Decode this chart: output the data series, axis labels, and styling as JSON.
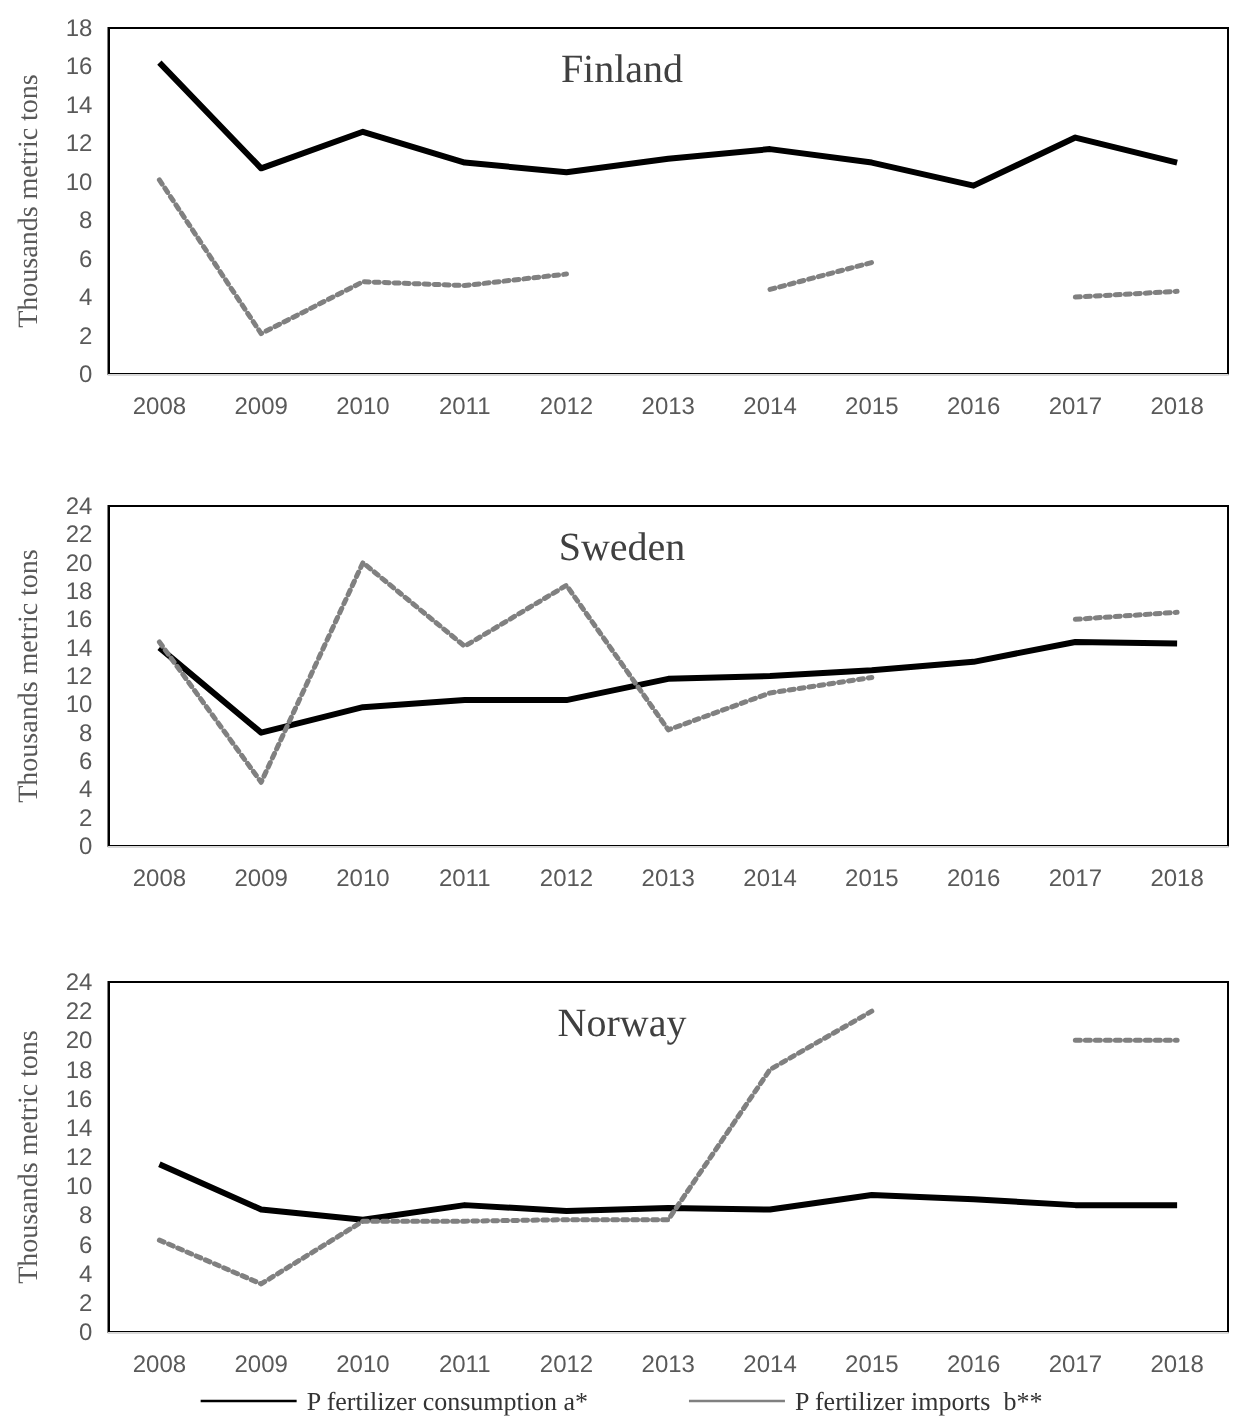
{
  "chart_data": [
    {
      "type": "line",
      "title": "Finland",
      "ylabel": "Thousands metric tons",
      "categories": [
        "2008",
        "2009",
        "2010",
        "2011",
        "2012",
        "2013",
        "2014",
        "2015",
        "2016",
        "2017",
        "2018"
      ],
      "ylim": [
        0,
        18
      ],
      "yticks": [
        0,
        2,
        4,
        6,
        8,
        10,
        12,
        14,
        16,
        18
      ],
      "grid": false,
      "legend": false,
      "marker": "none",
      "series": [
        {
          "color": "#000000",
          "line_style": "solid",
          "values": [
            16.2,
            10.7,
            12.6,
            11.0,
            10.5,
            11.2,
            11.7,
            11.0,
            9.8,
            12.3,
            11.0
          ]
        },
        {
          "color": "#808080",
          "line_style": "dotted",
          "values": [
            10.1,
            2.1,
            4.8,
            4.6,
            5.2,
            null,
            4.4,
            5.8,
            null,
            4.0,
            4.3
          ]
        }
      ]
    },
    {
      "type": "line",
      "title": "Sweden",
      "ylabel": "Thousands metric tons",
      "categories": [
        "2008",
        "2009",
        "2010",
        "2011",
        "2012",
        "2013",
        "2014",
        "2015",
        "2016",
        "2017",
        "2018"
      ],
      "ylim": [
        0,
        24
      ],
      "yticks": [
        0,
        2,
        4,
        6,
        8,
        10,
        12,
        14,
        16,
        18,
        20,
        22,
        24
      ],
      "grid": false,
      "legend": false,
      "marker": "none",
      "series": [
        {
          "color": "#000000",
          "line_style": "solid",
          "values": [
            14.0,
            8.0,
            9.8,
            10.3,
            10.3,
            11.8,
            12.0,
            12.4,
            13.0,
            14.4,
            14.3
          ]
        },
        {
          "color": "#808080",
          "line_style": "dotted",
          "values": [
            14.4,
            4.5,
            20.0,
            14.1,
            18.4,
            8.2,
            10.8,
            11.9,
            null,
            16.0,
            16.5
          ]
        }
      ]
    },
    {
      "type": "line",
      "title": "Norway",
      "ylabel": "Thousands metric tons",
      "categories": [
        "2008",
        "2009",
        "2010",
        "2011",
        "2012",
        "2013",
        "2014",
        "2015",
        "2016",
        "2017",
        "2018"
      ],
      "ylim": [
        0,
        24
      ],
      "yticks": [
        0,
        2,
        4,
        6,
        8,
        10,
        12,
        14,
        16,
        18,
        20,
        22,
        24
      ],
      "grid": false,
      "legend": "bottom",
      "marker": "none",
      "series": [
        {
          "name": "P fertilizer consumption a*",
          "color": "#000000",
          "line_style": "solid",
          "values": [
            11.5,
            8.4,
            7.7,
            8.7,
            8.3,
            8.5,
            8.4,
            9.4,
            9.1,
            8.7,
            8.7
          ]
        },
        {
          "name": "P fertilizer imports  b**",
          "color": "#808080",
          "line_style": "dotted",
          "values": [
            6.3,
            3.3,
            7.6,
            7.6,
            7.7,
            7.7,
            18.0,
            22.0,
            null,
            20.0,
            20.0
          ]
        }
      ]
    }
  ]
}
